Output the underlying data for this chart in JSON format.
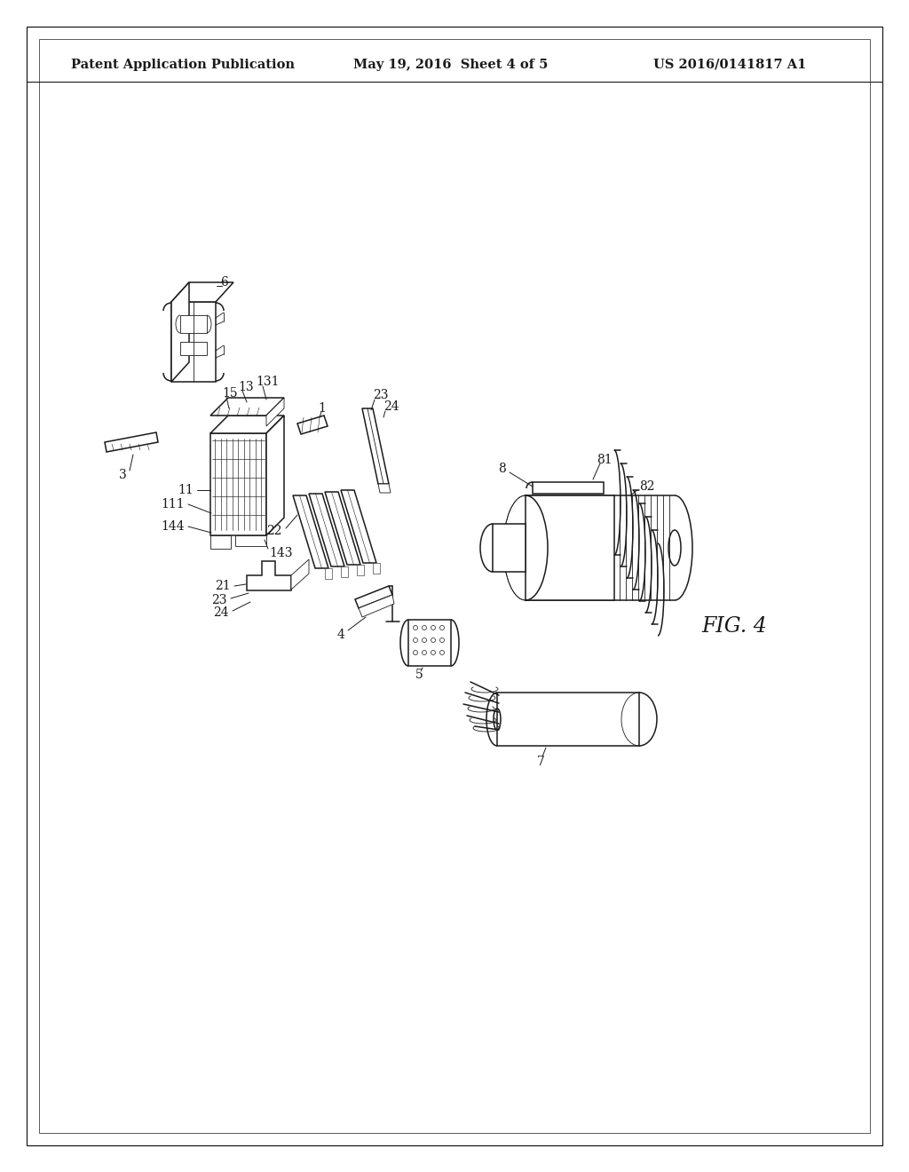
{
  "bg_color": "#ffffff",
  "lc": "#1a1a1a",
  "header_left": "Patent Application Publication",
  "header_center": "May 19, 2016  Sheet 4 of 5",
  "header_right": "US 2016/0141817 A1",
  "fig_label": "FIG. 4",
  "lw": 1.1,
  "lwd": 0.6,
  "fs": 10,
  "fs_header": 10.5
}
